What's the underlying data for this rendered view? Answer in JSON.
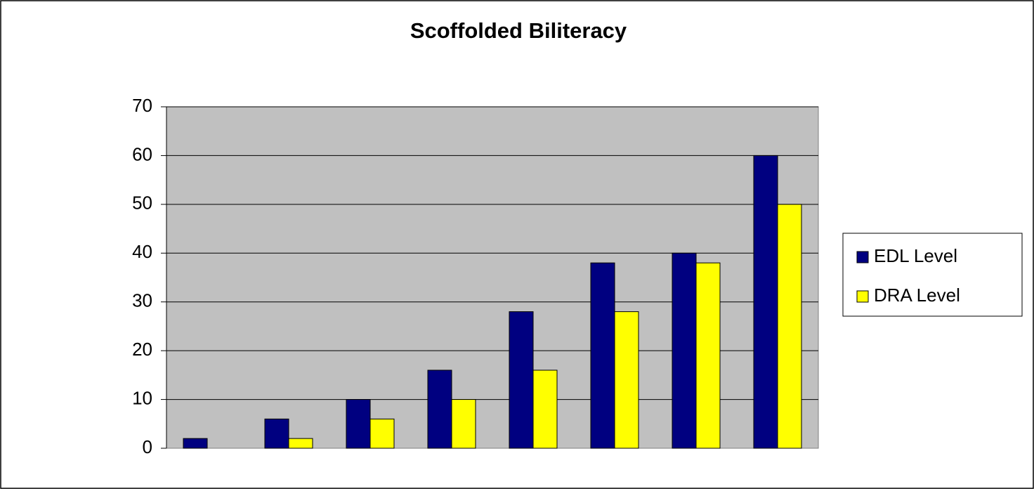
{
  "chart_data": {
    "type": "bar",
    "title": "Scoffolded Biliteracy",
    "categories": [
      null,
      null,
      null,
      null,
      null,
      null,
      null,
      null
    ],
    "series": [
      {
        "name": "EDL Level",
        "color": "#000080",
        "values": [
          2,
          6,
          10,
          16,
          28,
          38,
          40,
          60
        ]
      },
      {
        "name": "DRA Level",
        "color": "#ffff00",
        "values": [
          0,
          2,
          6,
          10,
          16,
          28,
          38,
          50
        ]
      }
    ],
    "ylim": [
      0,
      70
    ],
    "yticks": [
      0,
      10,
      20,
      30,
      40,
      50,
      60,
      70
    ],
    "grid": true,
    "legend": "right"
  }
}
